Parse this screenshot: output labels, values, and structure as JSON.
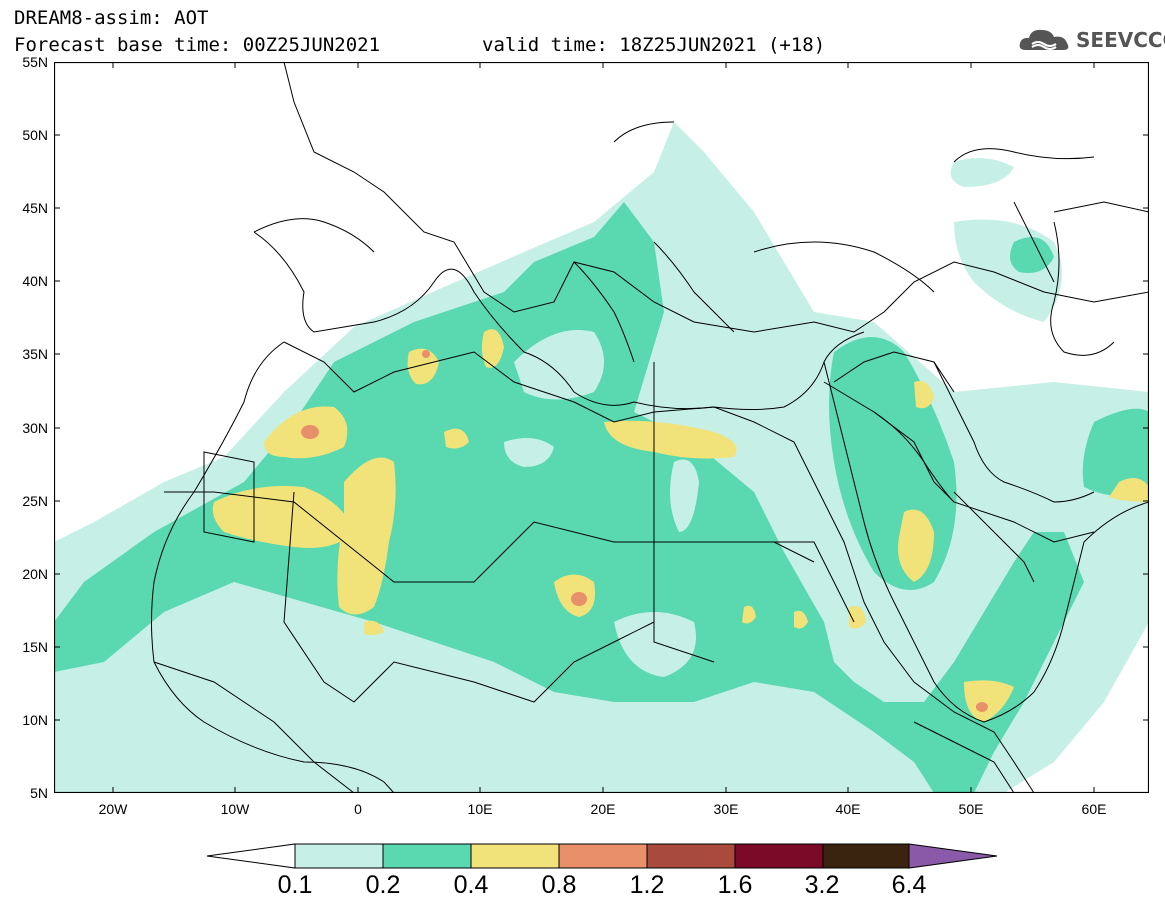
{
  "title": {
    "line1": "DREAM8-assim: AOT",
    "line2": "Forecast base time: 00Z25JUN2021",
    "line3": "valid time: 18Z25JUN2021 (+18)"
  },
  "logo": {
    "text": "SEEVCCC",
    "icon": "cloud-icon"
  },
  "map": {
    "latitude_labels": [
      "55N",
      "50N",
      "45N",
      "40N",
      "35N",
      "30N",
      "25N",
      "20N",
      "15N",
      "10N",
      "5N"
    ],
    "longitude_labels": [
      "20W",
      "10W",
      "0",
      "10E",
      "20E",
      "30E",
      "40E",
      "50E",
      "60E"
    ]
  },
  "colorbar": {
    "labels": [
      "0.1",
      "0.2",
      "0.4",
      "0.8",
      "1.2",
      "1.6",
      "3.2",
      "6.4"
    ],
    "colors": [
      "#c6f0e6",
      "#5ad8b0",
      "#f2e27a",
      "#e8906a",
      "#a84a3c",
      "#7a0a28",
      "#3a2410",
      "#8a5aa8"
    ]
  }
}
